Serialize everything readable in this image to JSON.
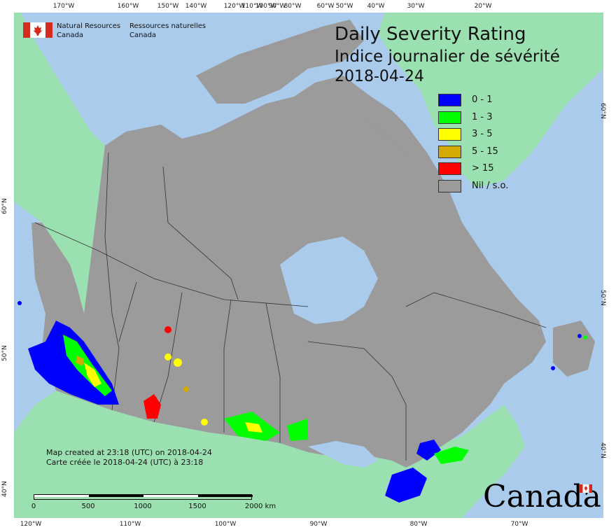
{
  "map": {
    "title_en": "Daily Severity Rating",
    "title_fr": "Indice journalier de sévérité",
    "date": "2018-04-24",
    "colors": {
      "ocean": "#aacbeb",
      "land_outside": "#9be0b0",
      "canada": "#9b9b9b",
      "borders": "#333333"
    }
  },
  "agency": {
    "name_en_1": "Natural Resources",
    "name_en_2": "Canada",
    "name_fr_1": "Ressources naturelles",
    "name_fr_2": "Canada",
    "wordmark": "Canada",
    "flag_color": "#d52b1e"
  },
  "legend": [
    {
      "label": "0 - 1",
      "color": "#0000ff"
    },
    {
      "label": "1 - 3",
      "color": "#00ff00"
    },
    {
      "label": "3 - 5",
      "color": "#ffff00"
    },
    {
      "label": "5 - 15",
      "color": "#d4aa00"
    },
    {
      "label": "> 15",
      "color": "#ff0000"
    },
    {
      "label": "Nil / s.o.",
      "color": "#9b9b9b"
    }
  ],
  "credits": {
    "line_en": "Map created at 23:18 (UTC) on 2018-04-24",
    "line_fr": "Carte créée le 2018-04-24 (UTC) à 23:18"
  },
  "scale": {
    "labels": [
      "0",
      "500",
      "1000",
      "1500",
      "2000 km"
    ]
  },
  "ticks": {
    "top": [
      "170°W",
      "160°W",
      "150°W",
      "140°W",
      "120°W",
      "110°W",
      "100°W",
      "90°W",
      "80°W",
      "60°W",
      "50°W",
      "40°W",
      "30°W",
      "20°W"
    ],
    "bottom": [
      "120°W",
      "110°W",
      "100°W",
      "90°W",
      "80°W",
      "70°W"
    ],
    "left": [
      "60°N",
      "50°N",
      "40°N"
    ],
    "right": [
      "60°N",
      "50°N",
      "40°N"
    ]
  }
}
